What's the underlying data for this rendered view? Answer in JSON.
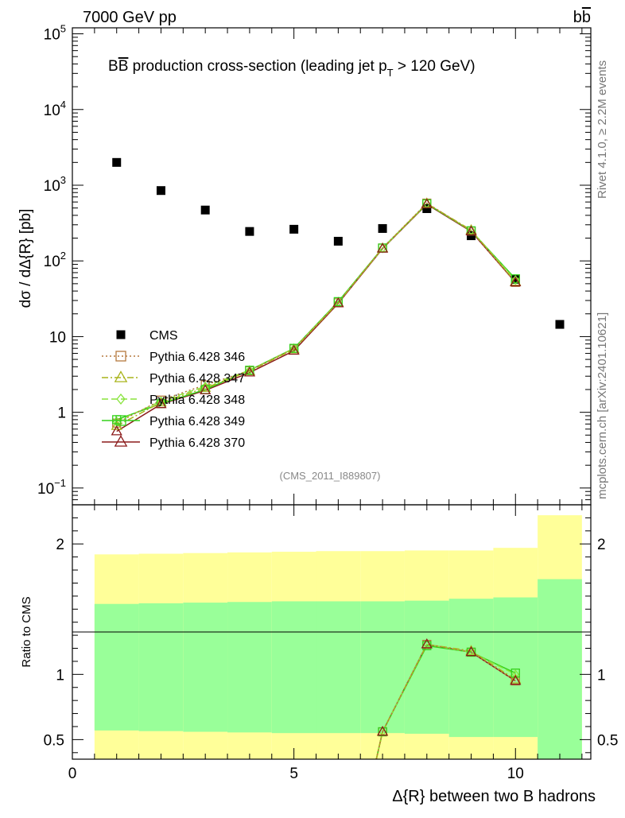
{
  "header": {
    "energy": "7000 GeV pp",
    "process_main": "b",
    "process_bar": "b"
  },
  "side_labels": {
    "rivet": "Rivet 4.1.0, ≥ 2.2M events",
    "mcplots": "mcplots.cern.ch [arXiv:2401.10621]"
  },
  "chart_data": [
    {
      "type": "scatter",
      "panel": "main",
      "title": "BB̅ production cross-section (leading jet pₜ > 120 GeV)",
      "title_parts": {
        "b1": "B",
        "b2": "B",
        "rest": " production cross-section (leading jet p",
        "sub": "T",
        "tail": " > 120 GeV)"
      },
      "ylabel": "dσ / dΔ{R} [pb]",
      "yscale": "log",
      "ylim": [
        0.06,
        120000
      ],
      "xlim": [
        0,
        11.7
      ],
      "ytick_labels": [
        {
          "v": 0.1,
          "base": "10",
          "sup": "−1"
        },
        {
          "v": 1,
          "base": "1",
          "sup": ""
        },
        {
          "v": 10,
          "base": "10",
          "sup": ""
        },
        {
          "v": 100,
          "base": "10",
          "sup": "2"
        },
        {
          "v": 1000,
          "base": "10",
          "sup": "3"
        },
        {
          "v": 10000,
          "base": "10",
          "sup": "4"
        },
        {
          "v": 100000,
          "base": "10",
          "sup": "5"
        }
      ],
      "analysis_tag": "(CMS_2011_I889807)",
      "series": [
        {
          "name": "CMS",
          "color": "#000000",
          "marker": "square-filled",
          "style": "none",
          "x": [
            1,
            2,
            3,
            4,
            5,
            6,
            7,
            8,
            9,
            10,
            11
          ],
          "y": [
            2000,
            850,
            470,
            245,
            262,
            182,
            268,
            490,
            215,
            57,
            14.5
          ]
        },
        {
          "name": "Pythia 6.428 346",
          "color": "#b5793f",
          "marker": "square-open",
          "style": "dotted",
          "x": [
            1,
            2,
            3,
            4,
            5,
            6,
            7,
            8,
            9,
            10
          ],
          "y": [
            0.72,
            1.45,
            2.3,
            3.55,
            6.9,
            28,
            148,
            580,
            248,
            52
          ]
        },
        {
          "name": "Pythia 6.428 347",
          "color": "#a9b41a",
          "marker": "triangle-open",
          "style": "dashdot",
          "x": [
            1,
            2,
            3,
            4,
            5,
            6,
            7,
            8,
            9,
            10
          ],
          "y": [
            0.66,
            1.35,
            2.1,
            3.5,
            6.8,
            28,
            147,
            575,
            255,
            53
          ]
        },
        {
          "name": "Pythia 6.428 348",
          "color": "#88e43c",
          "marker": "diamond-open",
          "style": "dashed",
          "x": [
            1,
            2,
            3,
            4,
            5,
            6,
            7,
            8,
            9,
            10
          ],
          "y": [
            0.76,
            1.4,
            2.2,
            3.6,
            7.0,
            28.5,
            146,
            570,
            252,
            56
          ]
        },
        {
          "name": "Pythia 6.428 349",
          "color": "#33d11a",
          "marker": "square-open",
          "style": "solid",
          "x": [
            1,
            2,
            3,
            4,
            5,
            6,
            7,
            8,
            9,
            10
          ],
          "y": [
            0.8,
            1.3,
            2.0,
            3.6,
            7.0,
            29,
            148,
            568,
            250,
            58
          ]
        },
        {
          "name": "Pythia 6.428 370",
          "color": "#8b1a1a",
          "marker": "triangle-open",
          "style": "solid",
          "x": [
            1,
            2,
            3,
            4,
            5,
            6,
            7,
            8,
            9,
            10
          ],
          "y": [
            0.56,
            1.28,
            1.95,
            3.35,
            6.5,
            27.5,
            145,
            560,
            245,
            52
          ]
        }
      ]
    },
    {
      "type": "line",
      "panel": "ratio",
      "ylabel": "Ratio to CMS",
      "xlabel": "Δ{R} between two B hadrons",
      "ylim": [
        0.35,
        2.3
      ],
      "xlim": [
        0,
        11.7
      ],
      "xtick_labels": [
        {
          "v": 0,
          "label": "0"
        },
        {
          "v": 5,
          "label": "5"
        },
        {
          "v": 10,
          "label": "10"
        }
      ],
      "ytick_labels": [
        {
          "v": 0.5,
          "label": "0.5"
        },
        {
          "v": 1,
          "label": "1"
        },
        {
          "v": 2,
          "label": "2"
        }
      ],
      "bands": [
        {
          "x0": 0.5,
          "x1": 1.5,
          "inner": [
            0.57,
            1.54
          ],
          "outer": [
            0.35,
            1.92
          ]
        },
        {
          "x0": 1.5,
          "x1": 2.5,
          "inner": [
            0.565,
            1.545
          ],
          "outer": [
            0.35,
            1.925
          ]
        },
        {
          "x0": 2.5,
          "x1": 3.5,
          "inner": [
            0.56,
            1.55
          ],
          "outer": [
            0.35,
            1.93
          ]
        },
        {
          "x0": 3.5,
          "x1": 4.5,
          "inner": [
            0.555,
            1.555
          ],
          "outer": [
            0.35,
            1.935
          ]
        },
        {
          "x0": 4.5,
          "x1": 5.5,
          "inner": [
            0.55,
            1.56
          ],
          "outer": [
            0.35,
            1.94
          ]
        },
        {
          "x0": 5.5,
          "x1": 6.5,
          "inner": [
            0.55,
            1.56
          ],
          "outer": [
            0.35,
            1.945
          ]
        },
        {
          "x0": 6.5,
          "x1": 7.5,
          "inner": [
            0.55,
            1.56
          ],
          "outer": [
            0.35,
            1.945
          ]
        },
        {
          "x0": 7.5,
          "x1": 8.5,
          "inner": [
            0.545,
            1.565
          ],
          "outer": [
            0.35,
            1.95
          ]
        },
        {
          "x0": 8.5,
          "x1": 9.5,
          "inner": [
            0.52,
            1.58
          ],
          "outer": [
            0.35,
            1.95
          ]
        },
        {
          "x0": 9.5,
          "x1": 10.5,
          "inner": [
            0.52,
            1.59
          ],
          "outer": [
            0.35,
            1.97
          ]
        },
        {
          "x0": 10.5,
          "x1": 11.5,
          "inner": [
            0.35,
            1.73
          ],
          "outer": [
            0.35,
            2.22
          ]
        }
      ],
      "series": [
        {
          "name": "Pythia 6.428 346",
          "color": "#b5793f",
          "marker": "square-open",
          "style": "dotted",
          "x": [
            6.86,
            7,
            8,
            9,
            10
          ],
          "y": [
            0.35,
            0.56,
            1.23,
            1.17,
            0.95
          ]
        },
        {
          "name": "Pythia 6.428 347",
          "color": "#a9b41a",
          "marker": "triangle-open",
          "style": "dashdot",
          "x": [
            6.86,
            7,
            8,
            9,
            10
          ],
          "y": [
            0.35,
            0.56,
            1.23,
            1.18,
            0.96
          ]
        },
        {
          "name": "Pythia 6.428 348",
          "color": "#88e43c",
          "marker": "diamond-open",
          "style": "dashed",
          "x": [
            6.86,
            7,
            8,
            9,
            10
          ],
          "y": [
            0.35,
            0.56,
            1.23,
            1.17,
            1.0
          ]
        },
        {
          "name": "Pythia 6.428 349",
          "color": "#33d11a",
          "marker": "square-open",
          "style": "solid",
          "x": [
            6.86,
            7,
            8,
            9,
            10
          ],
          "y": [
            0.35,
            0.56,
            1.22,
            1.17,
            1.01
          ]
        },
        {
          "name": "Pythia 6.428 370",
          "color": "#8b1a1a",
          "marker": "triangle-open",
          "style": "solid",
          "x": [
            6.86,
            7,
            8,
            9,
            10
          ],
          "y": [
            0.35,
            0.56,
            1.23,
            1.17,
            0.95
          ]
        }
      ]
    }
  ]
}
